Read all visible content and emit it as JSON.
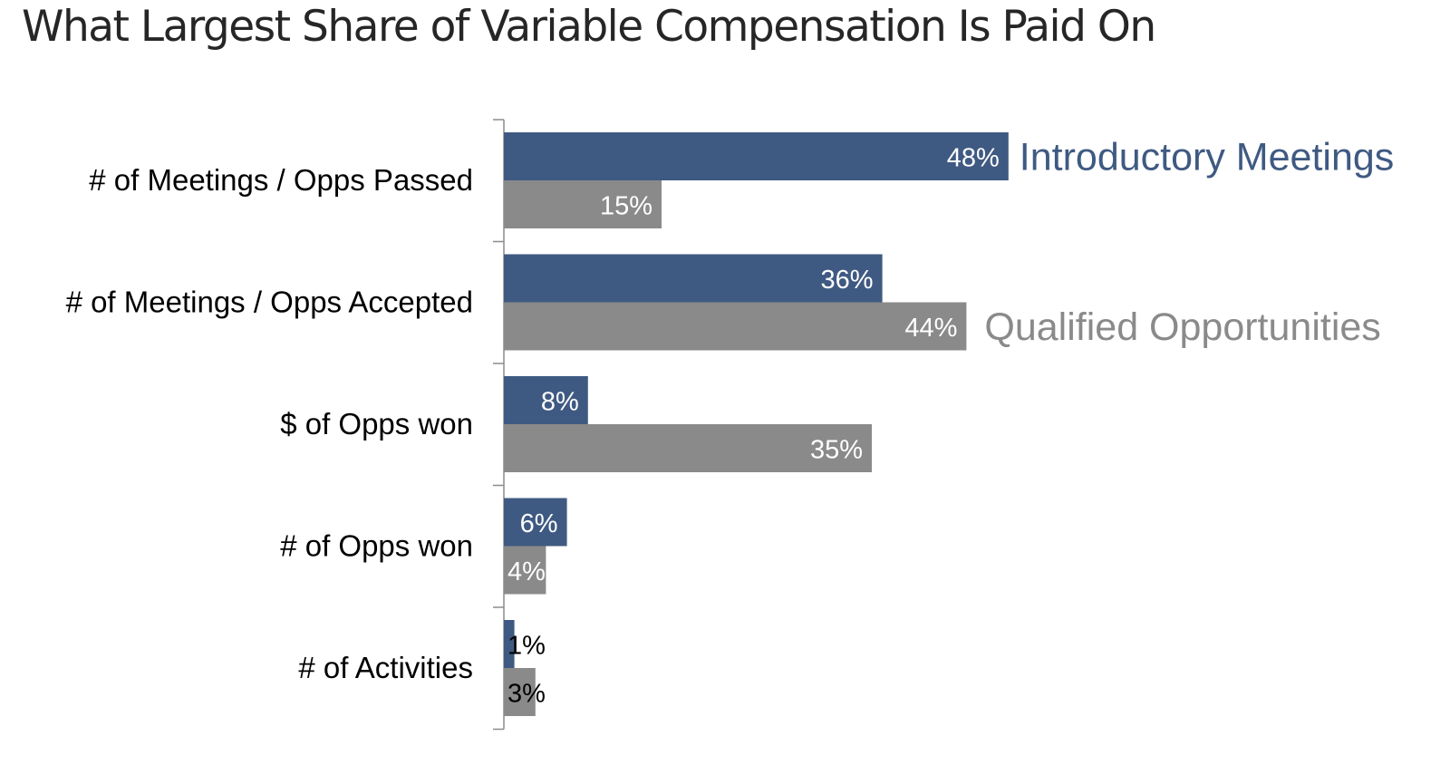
{
  "title": "What Largest Share of Variable Compensation Is Paid On",
  "chart_data": {
    "type": "bar",
    "orientation": "horizontal",
    "categories": [
      "# of Meetings / Opps Passed",
      "# of Meetings / Opps Accepted",
      "$ of Opps won",
      "# of Opps won",
      "# of Activities"
    ],
    "series": [
      {
        "name": "Introductory Meetings",
        "color": "#3f5a82",
        "values": [
          48,
          36,
          8,
          6,
          1
        ],
        "labels": [
          "48%",
          "36%",
          "8%",
          "6%",
          "1%"
        ]
      },
      {
        "name": "Qualified Opportunities",
        "color": "#8a8a8a",
        "values": [
          15,
          44,
          35,
          4,
          3
        ],
        "labels": [
          "15%",
          "44%",
          "35%",
          "4%",
          "3%"
        ]
      }
    ],
    "unit": "%",
    "xlim": [
      0,
      100
    ],
    "grid": false,
    "legend": "series names as inline labels beside the top blue bar and the longest grey bar"
  }
}
